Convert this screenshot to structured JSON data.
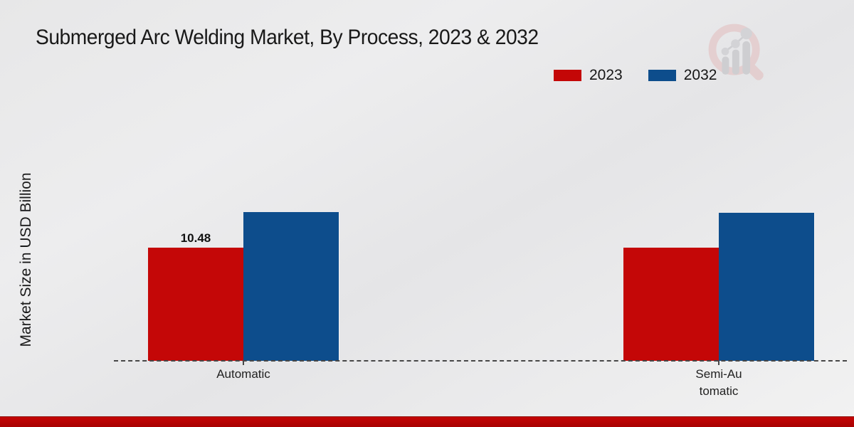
{
  "chart_data": {
    "type": "bar",
    "title": "Submerged Arc Welding Market, By Process, 2023 & 2032",
    "xlabel": "",
    "ylabel": "Market Size in USD Billion",
    "categories": [
      "Automatic",
      "Semi-Au\ntomatic"
    ],
    "series": [
      {
        "name": "2023",
        "color": "#c40707",
        "values": [
          10.48,
          10.5
        ]
      },
      {
        "name": "2032",
        "color": "#0d4d8c",
        "values": [
          13.8,
          13.7
        ]
      }
    ],
    "value_labels": [
      [
        "10.48",
        ""
      ],
      [
        "",
        ""
      ]
    ],
    "ylim": [
      0,
      16
    ],
    "grid": false,
    "legend_position": "top-right",
    "baseline_style": "dashed"
  },
  "colors": {
    "series_2023": "#c40707",
    "series_2032": "#0d4d8c",
    "footer_bar_top": "#c50404",
    "footer_bar_bottom": "#a80202",
    "axis_line": "#474747"
  },
  "icons": {
    "watermark": "bar-chart-magnifier-watermark-icon"
  }
}
